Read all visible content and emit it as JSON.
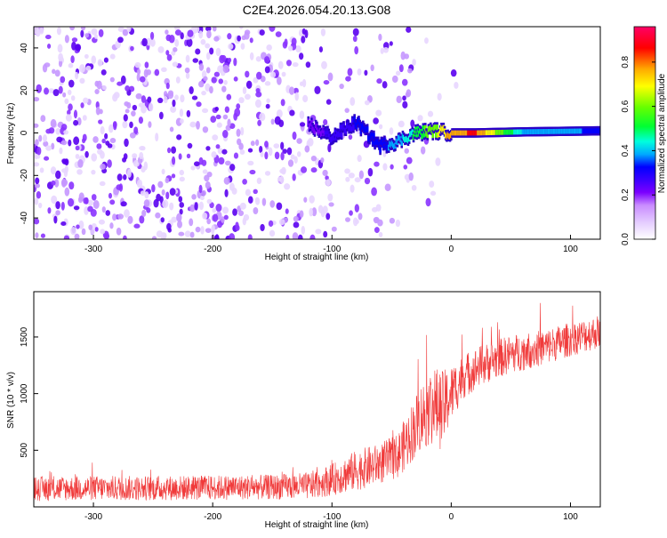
{
  "page_title": "C2E4.2026.054.20.13.G08",
  "colors": {
    "snr_line": "#f03a3a",
    "colormap": [
      "#ffffff",
      "#e4ccff",
      "#c98cff",
      "#7b00ff",
      "#3a00ff",
      "#0000ff",
      "#00aaff",
      "#00ffdd",
      "#00ff33",
      "#66ff00",
      "#ffff00",
      "#ffaa00",
      "#ff0000",
      "#ff0066"
    ]
  },
  "chart_data": [
    {
      "type": "heatmap",
      "title": "",
      "xlabel": "Height of straight line (km)",
      "ylabel": "Frequency (Hz)",
      "xlim": [
        -350,
        125
      ],
      "ylim": [
        -50,
        50
      ],
      "x_ticks": [
        -300,
        -200,
        -100,
        0,
        100
      ],
      "y_ticks": [
        -40,
        -20,
        0,
        20,
        40
      ],
      "colorbar": {
        "label": "Normalized spectral amplitude",
        "range": [
          0,
          0.96
        ],
        "ticks": [
          0.0,
          0.2,
          0.4,
          0.6,
          0.8
        ]
      },
      "ridge": {
        "description_points_x": [
          -120,
          -100,
          -80,
          -60,
          -45,
          -30,
          -15,
          0,
          20,
          60,
          125
        ],
        "description_points_y": [
          4,
          -2,
          5,
          -6,
          -4,
          0,
          1,
          0,
          0,
          0.5,
          1
        ],
        "amplitude": [
          0.2,
          0.3,
          0.35,
          0.4,
          0.45,
          0.6,
          0.7,
          0.85,
          0.9,
          0.5,
          0.4
        ]
      }
    },
    {
      "type": "line",
      "title": "",
      "xlabel": "Height of straight line (km)",
      "ylabel": "SNR (10 * v/v)",
      "xlim": [
        -350,
        125
      ],
      "ylim": [
        0,
        1900
      ],
      "x_ticks": [
        -300,
        -200,
        -100,
        0,
        100
      ],
      "y_ticks": [
        500,
        1000,
        1500
      ],
      "series": [
        {
          "x": [
            -350,
            -300,
            -250,
            -200,
            -150,
            -120,
            -100,
            -80,
            -60,
            -45,
            -35,
            -25,
            -15,
            -8,
            0,
            10,
            25,
            50,
            75,
            100,
            125
          ],
          "y": [
            160,
            165,
            165,
            170,
            175,
            185,
            240,
            320,
            380,
            450,
            620,
            800,
            900,
            850,
            1000,
            1150,
            1250,
            1350,
            1400,
            1480,
            1550
          ],
          "noise_amplitude": [
            110,
            110,
            110,
            110,
            110,
            120,
            140,
            180,
            180,
            200,
            250,
            300,
            350,
            350,
            250,
            200,
            180,
            170,
            160,
            150,
            150
          ]
        }
      ]
    }
  ]
}
